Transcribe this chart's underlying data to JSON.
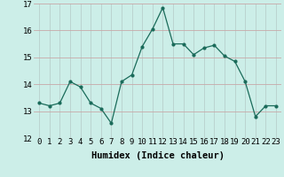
{
  "x": [
    0,
    1,
    2,
    3,
    4,
    5,
    6,
    7,
    8,
    9,
    10,
    11,
    12,
    13,
    14,
    15,
    16,
    17,
    18,
    19,
    20,
    21,
    22,
    23
  ],
  "y": [
    13.3,
    13.2,
    13.3,
    14.1,
    13.9,
    13.3,
    13.1,
    12.55,
    14.1,
    14.35,
    15.4,
    16.05,
    16.85,
    15.5,
    15.5,
    15.1,
    15.35,
    15.45,
    15.05,
    14.85,
    14.1,
    12.8,
    13.2,
    13.2
  ],
  "line_color": "#1a6b5a",
  "marker_color": "#1a6b5a",
  "bg_color": "#cceee8",
  "grid_color_major": "#c0a0a0",
  "grid_color_minor": "#c8ddd8",
  "xlabel": "Humidex (Indice chaleur)",
  "ylim": [
    12,
    17
  ],
  "xlim_min": -0.5,
  "xlim_max": 23.5,
  "yticks": [
    12,
    13,
    14,
    15,
    16,
    17
  ],
  "xticks": [
    0,
    1,
    2,
    3,
    4,
    5,
    6,
    7,
    8,
    9,
    10,
    11,
    12,
    13,
    14,
    15,
    16,
    17,
    18,
    19,
    20,
    21,
    22,
    23
  ],
  "tick_fontsize": 6.5,
  "xlabel_fontsize": 7.5
}
